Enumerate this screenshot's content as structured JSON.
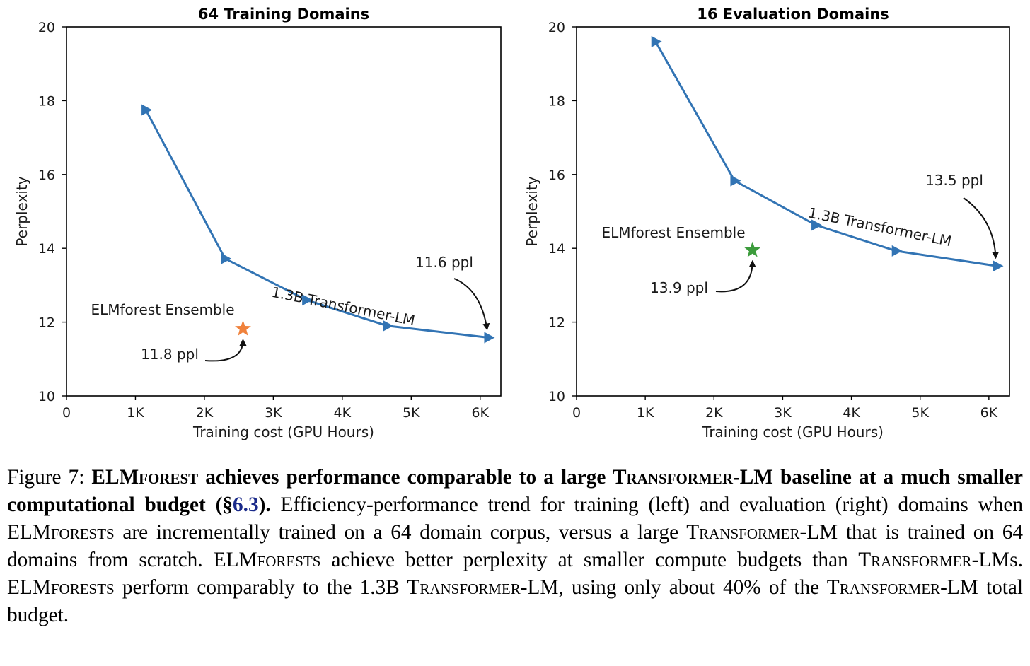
{
  "chart_data": [
    {
      "type": "line",
      "title": "64 Training Domains",
      "xlabel": "Training cost (GPU Hours)",
      "ylabel": "Perplexity",
      "xlim": [
        0,
        6300
      ],
      "ylim": [
        10,
        20
      ],
      "x_ticks": [
        0,
        1000,
        2000,
        3000,
        4000,
        5000,
        6000
      ],
      "x_tick_labels": [
        "0",
        "1K",
        "2K",
        "3K",
        "4K",
        "5K",
        "6K"
      ],
      "y_ticks": [
        10,
        12,
        14,
        16,
        18,
        20
      ],
      "y_tick_labels": [
        "10",
        "12",
        "14",
        "16",
        "18",
        "20"
      ],
      "grid": false,
      "series": [
        {
          "name": "1.3B Transformer-LM",
          "marker": "triangle-right",
          "color": "#3274b4",
          "x": [
            1150,
            2300,
            3480,
            4650,
            6120
          ],
          "y": [
            17.75,
            13.72,
            12.6,
            11.9,
            11.58
          ]
        }
      ],
      "points": [
        {
          "name": "ELMforest Ensemble",
          "marker": "star",
          "color": "#f0823c",
          "x": 2560,
          "y": 11.82
        }
      ],
      "annotations": [
        {
          "id": "series",
          "text": "1.3B Transformer-LM"
        },
        {
          "id": "point_label",
          "text": "ELMforest Ensemble"
        },
        {
          "id": "point_value",
          "text": "11.8 ppl"
        },
        {
          "id": "end_value",
          "text": "11.6 ppl"
        }
      ]
    },
    {
      "type": "line",
      "title": "16 Evaluation Domains",
      "xlabel": "Training cost (GPU Hours)",
      "ylabel": "Perplexity",
      "xlim": [
        0,
        6300
      ],
      "ylim": [
        10,
        20
      ],
      "x_ticks": [
        0,
        1000,
        2000,
        3000,
        4000,
        5000,
        6000
      ],
      "x_tick_labels": [
        "0",
        "1K",
        "2K",
        "3K",
        "4K",
        "5K",
        "6K"
      ],
      "y_ticks": [
        10,
        12,
        14,
        16,
        18,
        20
      ],
      "y_tick_labels": [
        "10",
        "12",
        "14",
        "16",
        "18",
        "20"
      ],
      "grid": false,
      "series": [
        {
          "name": "1.3B Transformer-LM",
          "marker": "triangle-right",
          "color": "#3274b4",
          "x": [
            1150,
            2300,
            3480,
            4650,
            6120
          ],
          "y": [
            19.6,
            15.83,
            14.63,
            13.93,
            13.52
          ]
        }
      ],
      "points": [
        {
          "name": "ELMforest Ensemble",
          "marker": "star",
          "color": "#3c9c3c",
          "x": 2560,
          "y": 13.95
        }
      ],
      "annotations": [
        {
          "id": "series",
          "text": "1.3B Transformer-LM"
        },
        {
          "id": "point_label",
          "text": "ELMforest Ensemble"
        },
        {
          "id": "point_value",
          "text": "13.9 ppl"
        },
        {
          "id": "end_value",
          "text": "13.5 ppl"
        }
      ]
    }
  ],
  "caption": {
    "prefix": "Figure 7: ",
    "bold_a": "ELM",
    "bold_a_sc": "forest",
    "bold_b": " achieves performance comparable to a large ",
    "bold_c": "T",
    "bold_c_sc": "ransformer",
    "bold_d": "-LM baseline at a much smaller computational budget (§",
    "ref": "6.3",
    "bold_e": ").",
    "t1": " Efficiency-performance trend for training (left) and evaluation (right) domains when ELM",
    "t1_sc": "forests",
    "t2": " are incrementally trained on a 64 domain corpus, versus a large T",
    "t2_sc": "ransformer",
    "t3": "-LM that is trained on 64 domains from scratch. ELM",
    "t3_sc": "forests",
    "t4": " achieve better perplexity at smaller compute budgets than T",
    "t4_sc": "ransformer",
    "t5": "-LMs. ELM",
    "t5_sc": "forests",
    "t6": " perform comparably to the 1.3B T",
    "t6_sc": "ransformer",
    "t7": "-LM, using only about 40% of the T",
    "t7_sc": "ransformer",
    "t8": "-LM total budget."
  }
}
